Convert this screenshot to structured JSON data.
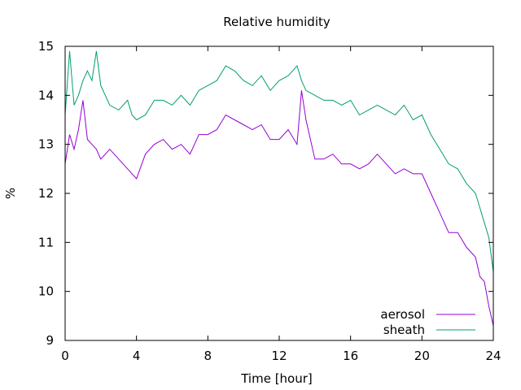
{
  "chart_data": {
    "type": "line",
    "title": "Relative humidity",
    "xlabel": "Time [hour]",
    "ylabel": "%",
    "xlim": [
      0,
      24
    ],
    "ylim": [
      9,
      15
    ],
    "xticks": [
      0,
      4,
      8,
      12,
      16,
      20,
      24
    ],
    "yticks": [
      9,
      10,
      11,
      12,
      13,
      14,
      15
    ],
    "grid": false,
    "legend_position": "bottom-right",
    "series": [
      {
        "name": "aerosol",
        "color": "#9400d3",
        "x": [
          0,
          0.25,
          0.5,
          0.75,
          1,
          1.25,
          1.5,
          1.75,
          2,
          2.5,
          3,
          3.5,
          3.75,
          4,
          4.5,
          5,
          5.5,
          6,
          6.5,
          7,
          7.5,
          8,
          8.5,
          9,
          9.5,
          10,
          10.5,
          11,
          11.5,
          12,
          12.5,
          13,
          13.25,
          13.5,
          14,
          14.5,
          15,
          15.5,
          16,
          16.5,
          17,
          17.5,
          18,
          18.5,
          19,
          19.5,
          20,
          20.5,
          21,
          21.5,
          22,
          22.5,
          23,
          23.25,
          23.5,
          23.75,
          24
        ],
        "y": [
          12.6,
          13.2,
          12.9,
          13.3,
          13.9,
          13.1,
          13.0,
          12.9,
          12.7,
          12.9,
          12.7,
          12.5,
          12.4,
          12.3,
          12.8,
          13.0,
          13.1,
          12.9,
          13.0,
          12.8,
          13.2,
          13.2,
          13.3,
          13.6,
          13.5,
          13.4,
          13.3,
          13.4,
          13.1,
          13.1,
          13.3,
          13.0,
          14.1,
          13.5,
          12.7,
          12.7,
          12.8,
          12.6,
          12.6,
          12.5,
          12.6,
          12.8,
          12.6,
          12.4,
          12.5,
          12.4,
          12.4,
          12.0,
          11.6,
          11.2,
          11.2,
          10.9,
          10.7,
          10.3,
          10.2,
          9.7,
          9.3
        ]
      },
      {
        "name": "sheath",
        "color": "#009e73",
        "x": [
          0,
          0.25,
          0.5,
          0.75,
          1,
          1.25,
          1.5,
          1.75,
          2,
          2.5,
          3,
          3.5,
          3.75,
          4,
          4.5,
          5,
          5.5,
          6,
          6.5,
          7,
          7.5,
          8,
          8.5,
          9,
          9.5,
          10,
          10.5,
          11,
          11.5,
          12,
          12.5,
          13,
          13.25,
          13.5,
          14,
          14.5,
          15,
          15.5,
          16,
          16.5,
          17,
          17.5,
          18,
          18.5,
          19,
          19.5,
          20,
          20.5,
          21,
          21.5,
          22,
          22.5,
          23,
          23.25,
          23.5,
          23.75,
          24
        ],
        "y": [
          13.6,
          14.9,
          13.8,
          14.0,
          14.3,
          14.5,
          14.3,
          14.9,
          14.2,
          13.8,
          13.7,
          13.9,
          13.6,
          13.5,
          13.6,
          13.9,
          13.9,
          13.8,
          14.0,
          13.8,
          14.1,
          14.2,
          14.3,
          14.6,
          14.5,
          14.3,
          14.2,
          14.4,
          14.1,
          14.3,
          14.4,
          14.6,
          14.3,
          14.1,
          14.0,
          13.9,
          13.9,
          13.8,
          13.9,
          13.6,
          13.7,
          13.8,
          13.7,
          13.6,
          13.8,
          13.5,
          13.6,
          13.2,
          12.9,
          12.6,
          12.5,
          12.2,
          12.0,
          11.7,
          11.4,
          11.1,
          10.4
        ]
      }
    ]
  }
}
